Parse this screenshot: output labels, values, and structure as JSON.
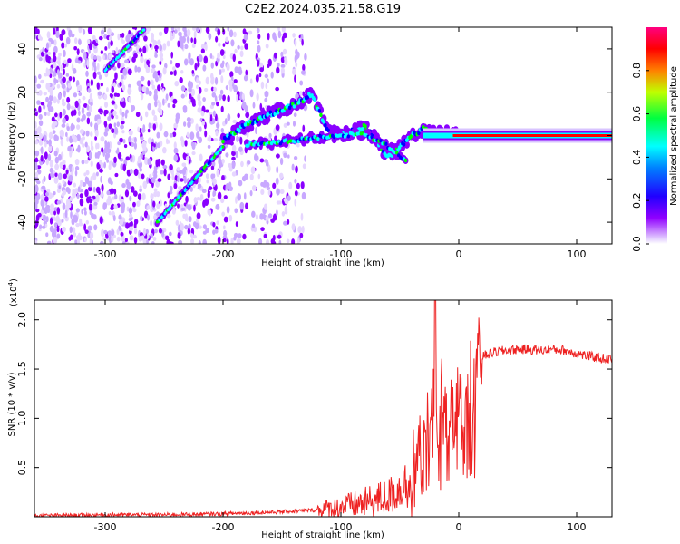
{
  "chart_data": [
    {
      "type": "heatmap",
      "title": "C2E2.2024.035.21.58.G19",
      "xlabel": "Height of straight line (km)",
      "ylabel": "Frequency (Hz)",
      "xlim": [
        -360,
        130
      ],
      "ylim": [
        -50,
        50
      ],
      "x_ticks": [
        -300,
        -200,
        -100,
        0,
        100
      ],
      "y_ticks": [
        -40,
        -20,
        0,
        20,
        40
      ],
      "colorbar": {
        "label": "Normalized spectral amplitude",
        "range": [
          0.0,
          1.0
        ],
        "ticks": [
          "0.0",
          "0.2",
          "0.4",
          "0.6",
          "0.8"
        ],
        "colormap": [
          "#e6d6ff",
          "#8a00ff",
          "#0000ff",
          "#00ffff",
          "#00ff00",
          "#ffff00",
          "#ff8000",
          "#ff0000",
          "#ff0080"
        ]
      },
      "features": {
        "upper_diagonal_track": {
          "x": [
            -300,
            -267
          ],
          "y": [
            30,
            49
          ]
        },
        "lower_diagonal_track": {
          "x": [
            -256,
            -200
          ],
          "y": [
            -40,
            -5
          ]
        },
        "main_track": {
          "x": [
            -200,
            -180,
            -160,
            -140,
            -125,
            -110,
            -95,
            -80,
            -70,
            -60,
            -50,
            -40,
            -30,
            -20,
            -10,
            0,
            50,
            100,
            130
          ],
          "y": [
            -2,
            5,
            10,
            14,
            19,
            1,
            1,
            4,
            -2,
            -10,
            -5,
            0,
            3,
            1,
            1,
            0,
            0,
            0,
            0
          ]
        },
        "secondary_track": {
          "x": [
            -180,
            -150,
            -120,
            -100,
            -80,
            -60,
            -45
          ],
          "y": [
            -4,
            -3,
            -1,
            0,
            1,
            -5,
            -12
          ]
        },
        "carrier_line": {
          "x": [
            -30,
            130
          ],
          "y": [
            0,
            0
          ]
        }
      }
    },
    {
      "type": "line",
      "xlabel": "Height of straight line (km)",
      "ylabel": "SNR (10 * v/v)",
      "y_multiplier": "(x10",
      "y_multiplier_exponent": "4",
      "xlim": [
        -360,
        130
      ],
      "ylim": [
        0,
        2.2
      ],
      "x_ticks": [
        -300,
        -200,
        -100,
        0,
        100
      ],
      "y_ticks": [
        "0.5",
        "1.0",
        "1.5",
        "2.0"
      ],
      "line_color": "#ee2222",
      "x": [
        -360,
        -300,
        -250,
        -200,
        -150,
        -120,
        -100,
        -80,
        -60,
        -50,
        -40,
        -35,
        -30,
        -25,
        -22,
        -20,
        -18,
        -15,
        -10,
        -5,
        0,
        5,
        10,
        15,
        20,
        30,
        40,
        50,
        60,
        70,
        80,
        90,
        100,
        110,
        120,
        130
      ],
      "y": [
        0.01,
        0.02,
        0.02,
        0.03,
        0.05,
        0.07,
        0.1,
        0.14,
        0.2,
        0.28,
        0.42,
        0.55,
        0.75,
        1.0,
        1.25,
        1.1,
        1.15,
        1.25,
        1.1,
        1.1,
        1.1,
        1.3,
        1.45,
        1.55,
        1.63,
        1.67,
        1.69,
        1.7,
        1.7,
        1.69,
        1.7,
        1.69,
        1.66,
        1.63,
        1.61,
        1.6
      ]
    }
  ]
}
